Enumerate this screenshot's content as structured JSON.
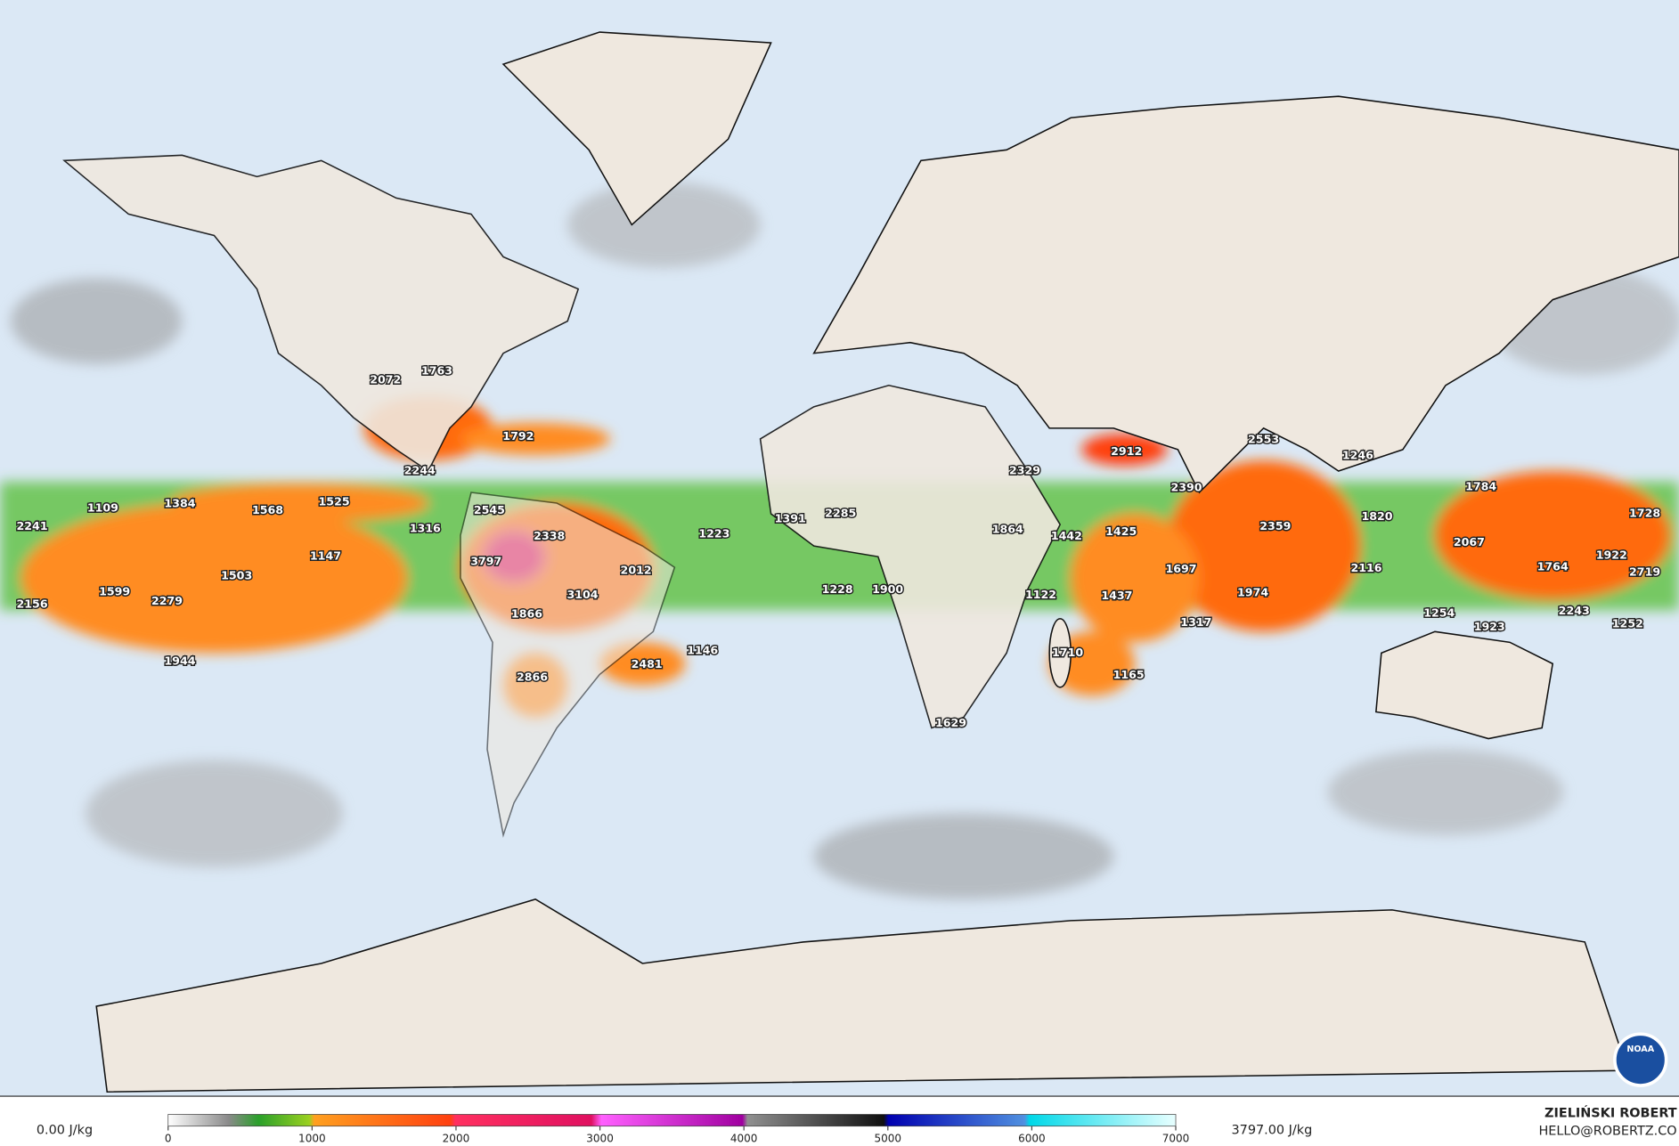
{
  "map": {
    "labels": [
      2072,
      1763,
      1792,
      2244,
      1109,
      1384,
      1568,
      1525,
      2241,
      1316,
      1147,
      1503,
      1599,
      2279,
      2156,
      1944,
      2545,
      2338,
      3797,
      3104,
      2012,
      1866,
      2866,
      2481,
      1146,
      1223,
      1391,
      2285,
      1228,
      1900,
      1864,
      2329,
      2912,
      1442,
      1425,
      1122,
      1437,
      1697,
      1710,
      1165,
      1629,
      2390,
      2553,
      2359,
      1974,
      1317,
      1246,
      1784,
      1820,
      2067,
      2116,
      1764,
      1922,
      1728,
      2719,
      2243,
      1254,
      1923,
      1252
    ],
    "colorbar": {
      "lim": [
        0,
        7000
      ],
      "ticks": [
        0,
        1000,
        2000,
        3000,
        4000,
        5000,
        6000,
        7000
      ]
    },
    "min_label": "0.00 J/kg",
    "max_label": "3797.00 J/kg",
    "author": "ZIELIŃSKI ROBERT",
    "contact": "HELLO@ROBERTZ.CO",
    "logo": "NOAA"
  }
}
